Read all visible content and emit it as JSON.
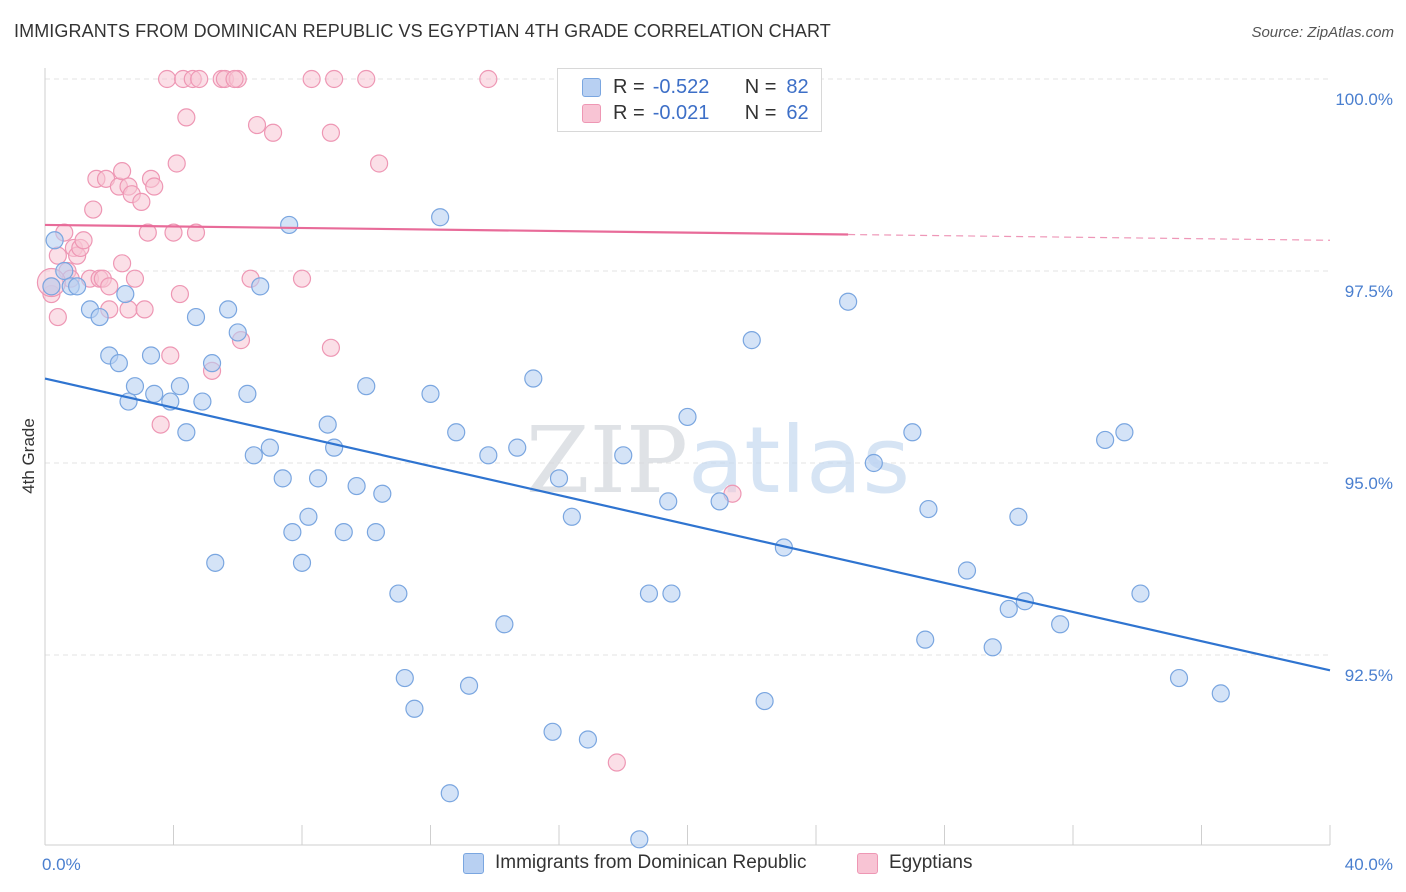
{
  "title": "IMMIGRANTS FROM DOMINICAN REPUBLIC VS EGYPTIAN 4TH GRADE CORRELATION CHART",
  "source": "Source: ZipAtlas.com",
  "watermark": "ZIPatlas",
  "legend": {
    "rows": [
      {
        "r_label": "R =",
        "r_value": "-0.522",
        "n_label": "N =",
        "n_value": "82"
      },
      {
        "r_label": "R =",
        "r_value": "-0.021",
        "n_label": "N =",
        "n_value": "62"
      }
    ]
  },
  "bottom_legend": {
    "series1": "Immigrants from Dominican Republic",
    "series2": "Egyptians"
  },
  "colors": {
    "blue_fill": "#b8d0f2",
    "blue_stroke": "#7aa6e0",
    "blue_line": "#2f74d0",
    "pink_fill": "#f8c4d4",
    "pink_stroke": "#ee97b4",
    "pink_line": "#e86b99",
    "tick_text": "#4a7fcf",
    "grid": "#e3e3e3"
  },
  "chart_data": {
    "type": "scatter",
    "title": "IMMIGRANTS FROM DOMINICAN REPUBLIC VS EGYPTIAN 4TH GRADE CORRELATION CHART",
    "xlabel": "",
    "ylabel": "4th Grade",
    "xlim": [
      0,
      40
    ],
    "ylim": [
      90.0,
      100.3
    ],
    "x_tick_labels": [
      "0.0%",
      "40.0%"
    ],
    "y_ticks": [
      92.5,
      95.0,
      97.5,
      100.0
    ],
    "y_tick_labels": [
      "92.5%",
      "95.0%",
      "97.5%",
      "100.0%"
    ],
    "grid": "horizontal dashed",
    "legend_position": "top-center",
    "series": [
      {
        "name": "Immigrants from Dominican Republic",
        "color": "#b8d0f2",
        "r": -0.522,
        "n": 82,
        "trend": {
          "x": [
            0,
            40
          ],
          "y": [
            96.1,
            92.3
          ]
        },
        "points": [
          [
            0.2,
            97.3
          ],
          [
            0.3,
            97.9
          ],
          [
            0.6,
            97.5
          ],
          [
            0.8,
            97.3
          ],
          [
            1.4,
            97.0
          ],
          [
            1.7,
            96.9
          ],
          [
            2.0,
            96.4
          ],
          [
            2.3,
            96.3
          ],
          [
            2.6,
            95.8
          ],
          [
            2.8,
            96.0
          ],
          [
            3.3,
            96.4
          ],
          [
            3.4,
            95.9
          ],
          [
            3.9,
            95.8
          ],
          [
            4.2,
            96.0
          ],
          [
            4.4,
            95.4
          ],
          [
            4.7,
            96.9
          ],
          [
            4.9,
            95.8
          ],
          [
            5.2,
            96.3
          ],
          [
            5.3,
            93.7
          ],
          [
            5.7,
            97.0
          ],
          [
            6.0,
            96.7
          ],
          [
            6.3,
            95.9
          ],
          [
            6.5,
            95.1
          ],
          [
            6.7,
            97.3
          ],
          [
            7.0,
            95.2
          ],
          [
            7.4,
            94.8
          ],
          [
            7.7,
            94.1
          ],
          [
            8.0,
            93.7
          ],
          [
            8.2,
            94.3
          ],
          [
            8.5,
            94.8
          ],
          [
            8.8,
            95.5
          ],
          [
            9.0,
            95.2
          ],
          [
            9.3,
            94.1
          ],
          [
            9.7,
            94.7
          ],
          [
            10.0,
            96.0
          ],
          [
            10.3,
            94.1
          ],
          [
            10.5,
            94.6
          ],
          [
            11.0,
            93.3
          ],
          [
            11.2,
            92.2
          ],
          [
            11.5,
            91.8
          ],
          [
            12.0,
            95.9
          ],
          [
            12.3,
            98.2
          ],
          [
            12.6,
            90.7
          ],
          [
            12.8,
            95.4
          ],
          [
            13.2,
            92.1
          ],
          [
            13.8,
            95.1
          ],
          [
            14.3,
            92.9
          ],
          [
            14.7,
            95.2
          ],
          [
            15.2,
            96.1
          ],
          [
            15.8,
            91.5
          ],
          [
            16.0,
            94.8
          ],
          [
            16.4,
            94.3
          ],
          [
            16.9,
            91.4
          ],
          [
            18.0,
            95.1
          ],
          [
            18.5,
            90.1
          ],
          [
            18.8,
            93.3
          ],
          [
            19.4,
            94.5
          ],
          [
            19.5,
            93.3
          ],
          [
            20.0,
            95.6
          ],
          [
            21.0,
            94.5
          ],
          [
            22.0,
            96.6
          ],
          [
            22.4,
            91.9
          ],
          [
            23.0,
            93.9
          ],
          [
            25.0,
            97.1
          ],
          [
            25.8,
            95.0
          ],
          [
            27.0,
            95.4
          ],
          [
            27.4,
            92.7
          ],
          [
            27.5,
            94.4
          ],
          [
            28.7,
            93.6
          ],
          [
            29.5,
            92.6
          ],
          [
            30.0,
            93.1
          ],
          [
            30.3,
            94.3
          ],
          [
            30.5,
            93.2
          ],
          [
            31.6,
            92.9
          ],
          [
            33.0,
            95.3
          ],
          [
            33.6,
            95.4
          ],
          [
            34.1,
            93.3
          ],
          [
            35.3,
            92.2
          ],
          [
            36.6,
            92.0
          ],
          [
            1.0,
            97.3
          ],
          [
            7.6,
            98.1
          ],
          [
            2.5,
            97.2
          ]
        ]
      },
      {
        "name": "Egyptians",
        "color": "#f8c4d4",
        "r": -0.021,
        "n": 62,
        "trend": {
          "x": [
            0,
            40
          ],
          "y": [
            98.1,
            97.9
          ]
        },
        "points": [
          [
            0.2,
            97.2
          ],
          [
            0.4,
            97.7
          ],
          [
            0.4,
            96.9
          ],
          [
            0.6,
            98.0
          ],
          [
            0.7,
            97.5
          ],
          [
            0.8,
            97.4
          ],
          [
            0.9,
            97.8
          ],
          [
            1.0,
            97.7
          ],
          [
            1.1,
            97.8
          ],
          [
            1.2,
            97.9
          ],
          [
            1.4,
            97.4
          ],
          [
            1.5,
            98.3
          ],
          [
            1.6,
            98.7
          ],
          [
            1.7,
            97.4
          ],
          [
            1.8,
            97.4
          ],
          [
            1.9,
            98.7
          ],
          [
            2.0,
            97.3
          ],
          [
            2.0,
            97.0
          ],
          [
            2.3,
            98.6
          ],
          [
            2.4,
            97.6
          ],
          [
            2.4,
            98.8
          ],
          [
            2.6,
            98.6
          ],
          [
            2.6,
            97.0
          ],
          [
            2.7,
            98.5
          ],
          [
            2.8,
            97.4
          ],
          [
            3.0,
            98.4
          ],
          [
            3.1,
            97.0
          ],
          [
            3.2,
            98.0
          ],
          [
            3.3,
            98.7
          ],
          [
            3.4,
            98.6
          ],
          [
            3.6,
            95.5
          ],
          [
            3.8,
            100.0
          ],
          [
            3.9,
            96.4
          ],
          [
            4.0,
            98.0
          ],
          [
            4.1,
            98.9
          ],
          [
            4.2,
            97.2
          ],
          [
            4.3,
            100.0
          ],
          [
            4.4,
            99.5
          ],
          [
            4.6,
            100.0
          ],
          [
            4.7,
            98.0
          ],
          [
            4.8,
            100.0
          ],
          [
            5.2,
            96.2
          ],
          [
            5.5,
            100.0
          ],
          [
            5.6,
            100.0
          ],
          [
            6.0,
            100.0
          ],
          [
            6.1,
            96.6
          ],
          [
            6.4,
            97.4
          ],
          [
            6.6,
            99.4
          ],
          [
            7.1,
            99.3
          ],
          [
            8.0,
            97.4
          ],
          [
            8.3,
            100.0
          ],
          [
            8.9,
            96.5
          ],
          [
            8.9,
            99.3
          ],
          [
            9.0,
            100.0
          ],
          [
            10.0,
            100.0
          ],
          [
            10.4,
            98.9
          ],
          [
            13.8,
            100.0
          ],
          [
            17.8,
            91.1
          ],
          [
            20.2,
            100.0
          ],
          [
            21.4,
            94.6
          ],
          [
            0.2,
            97.3
          ],
          [
            5.9,
            100.0
          ]
        ]
      }
    ]
  }
}
